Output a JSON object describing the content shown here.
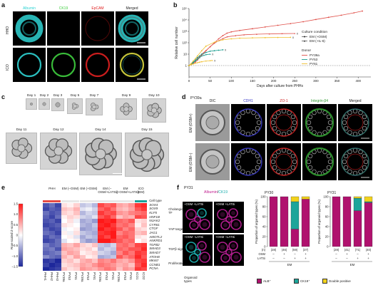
{
  "panel_a": {
    "letter": "a",
    "columns": [
      "Albumin",
      "CK19",
      "EpCAM",
      "Merged"
    ],
    "column_colors": [
      "#2fd3d3",
      "#3fcf3f",
      "#e02020",
      "#ffffff"
    ],
    "rows": [
      "HHO",
      "ICO"
    ]
  },
  "panel_b": {
    "letter": "b",
    "chart_data": {
      "type": "line",
      "xlabel": "Days after culture from PHHs",
      "ylabel": "Relative cell number",
      "xlim": [
        0,
        430
      ],
      "x_ticks": [
        "0",
        "50",
        "100",
        "150",
        "200",
        "250",
        "300",
        "350",
        "400"
      ],
      "y_ticks": [
        "1",
        "10",
        "10²",
        "10³",
        "10⁴",
        "10⁵"
      ],
      "y_scale": "log",
      "legend_condition_title": "Culture condition",
      "legend_condition": [
        "EM (+OSM)",
        "EM (+IL-6)"
      ],
      "legend_donor_title": "Donor",
      "legend_donor": [
        "PY39a",
        "PY53",
        "PY61"
      ],
      "series": [
        {
          "name": "PY39a",
          "color": "#e0504a",
          "condition": "EM (+OSM)",
          "end_marker": "none",
          "x": [
            0,
            5,
            10,
            15,
            20,
            25,
            30,
            35,
            40,
            50,
            60,
            70,
            80,
            90,
            100,
            120,
            150,
            180,
            210,
            240,
            270,
            300,
            330,
            360,
            390,
            410
          ],
          "y": [
            1,
            1.2,
            1.5,
            2,
            3,
            5,
            8,
            12,
            20,
            45,
            100,
            220,
            420,
            700,
            900,
            1200,
            1700,
            2400,
            3400,
            4800,
            7000,
            11000,
            17000,
            26000,
            42000,
            60000
          ]
        },
        {
          "name": "PY39a",
          "color": "#e0504a",
          "condition": "EM (+IL-6)",
          "end_marker": "x",
          "x": [
            0,
            5,
            10,
            15,
            20,
            25,
            30,
            40,
            50,
            60,
            70,
            80,
            90,
            110,
            130,
            160,
            190,
            220,
            250
          ],
          "y": [
            1,
            1.3,
            1.7,
            2.5,
            4,
            6,
            10,
            20,
            45,
            90,
            150,
            230,
            330,
            420,
            500,
            560,
            600,
            630,
            650
          ]
        },
        {
          "name": "PY53",
          "color": "#1a9d8f",
          "condition": "EM (+OSM)",
          "end_marker": "x",
          "x": [
            0,
            5,
            10,
            15,
            20,
            25,
            30,
            40,
            50,
            60,
            70,
            80
          ],
          "y": [
            1,
            1.4,
            2,
            3,
            5,
            7,
            10,
            14,
            18,
            20,
            22,
            24
          ]
        },
        {
          "name": "PY53",
          "color": "#1a9d8f",
          "condition": "EM (+IL-6)",
          "end_marker": "x",
          "x": [
            0,
            5,
            10,
            15,
            20,
            25,
            30,
            35,
            40,
            50
          ],
          "y": [
            1,
            1.3,
            1.8,
            2.5,
            3.5,
            5,
            7,
            8,
            9,
            10
          ]
        },
        {
          "name": "PY61",
          "color": "#f0c030",
          "condition": "EM (+OSM)",
          "end_marker": "x",
          "x": [
            0,
            5,
            10,
            15,
            20,
            30,
            40,
            60,
            80,
            100,
            120,
            150,
            180,
            210,
            240
          ],
          "y": [
            1,
            1.5,
            2.5,
            4,
            7,
            20,
            50,
            110,
            180,
            220,
            250,
            270,
            280,
            290,
            300
          ]
        },
        {
          "name": "PY61",
          "color": "#f0c030",
          "condition": "EM (+IL-6)",
          "end_marker": "x",
          "x": [
            0,
            5,
            10,
            15,
            20,
            25,
            30,
            40,
            50,
            55
          ],
          "y": [
            1,
            1.2,
            1.4,
            1.6,
            1.8,
            2,
            2.2,
            2.5,
            2.7,
            2.8
          ]
        }
      ]
    }
  },
  "panel_c": {
    "letter": "c",
    "days": [
      "Day 1",
      "Day 2",
      "Day 3",
      "Day 5",
      "Day 7",
      "Day 9",
      "Day 10",
      "Day 11",
      "Day 12",
      "Day 14",
      "Day 15"
    ]
  },
  "panel_d": {
    "letter": "d",
    "donor": "PY39a",
    "columns": [
      "DIC",
      "CDH1",
      "ZO-1",
      "Integrin-β4",
      "Merged"
    ],
    "column_colors": [
      "#222222",
      "#3a3ac8",
      "#d02020",
      "#2f9a2f",
      "#222222"
    ],
    "rows": [
      "EM (OSM+)",
      "EM (OSM–)"
    ]
  },
  "panel_e": {
    "letter": "e",
    "groups": [
      "PHH",
      "EM (–OSM)",
      "EM (+OSM)",
      "EM (–OSM/+LATSi)",
      "EM (+OSM/+LATSi)",
      "ICO (EM)"
    ],
    "cell_type_label": "Cell type",
    "gene_groups": [
      {
        "label": "Cholangio-cyte TF",
        "genes": [
          "SOX4",
          "SOX9",
          "KLF5",
          "HNF1B"
        ]
      },
      {
        "label": "YAP targets",
        "genes": [
          "NUAK2",
          "CYR61",
          "CTGF",
          "JAG1",
          "AMOTL2",
          "ANKRD1"
        ]
      },
      {
        "label": "TGFβ signalling",
        "genes": [
          "TGFB2",
          "SMAD3",
          "SMAD7",
          "ATOH8"
        ]
      },
      {
        "label": "Proliferation",
        "genes": [
          "MKI67",
          "CCNB1",
          "PCNA"
        ]
      }
    ],
    "colorbar_label": "Row-scaled Z-score",
    "colorbar_ticks": [
      "1.5",
      "1.0",
      "0.5",
      "0",
      "–0.5",
      "–1.0",
      "–1.5"
    ],
    "samples": [
      "PHH1",
      "PHH2",
      "PHH3",
      "PY39a",
      "PY53",
      "PY61",
      "PY39a",
      "PY53",
      "PY61",
      "PY39a",
      "PY53",
      "PY61",
      "PY39a",
      "PY53",
      "PY61",
      "ICO1",
      "ICO2"
    ],
    "matrix": [
      [
        -1.2,
        -1.0,
        -1.3,
        0.2,
        0.1,
        0.3,
        -0.4,
        -0.3,
        -0.5,
        1.2,
        1.0,
        1.1,
        0.6,
        0.5,
        0.7,
        1.3,
        1.4
      ],
      [
        -1.3,
        -1.1,
        -1.2,
        0.4,
        0.3,
        0.5,
        -0.2,
        -0.1,
        -0.3,
        1.0,
        1.2,
        0.9,
        0.5,
        0.4,
        0.6,
        1.1,
        1.3
      ],
      [
        -1.0,
        -1.2,
        -1.1,
        0.3,
        0.2,
        0.4,
        -0.5,
        -0.3,
        -0.4,
        1.3,
        1.1,
        1.2,
        0.7,
        0.6,
        0.8,
        0.9,
        1.0
      ],
      [
        -1.1,
        -1.3,
        -1.0,
        0.1,
        0.3,
        0.2,
        -0.3,
        -0.4,
        -0.2,
        1.1,
        1.3,
        1.0,
        0.4,
        0.6,
        0.5,
        1.2,
        1.1
      ],
      [
        -1.2,
        -1.1,
        -1.3,
        0.0,
        0.2,
        -0.1,
        -0.6,
        -0.5,
        -0.7,
        1.5,
        1.4,
        1.5,
        1.0,
        0.9,
        1.1,
        0.2,
        0.3
      ],
      [
        -1.3,
        -1.2,
        -1.1,
        0.2,
        0.1,
        0.0,
        -0.5,
        -0.6,
        -0.4,
        1.4,
        1.5,
        1.3,
        0.9,
        1.0,
        0.8,
        0.1,
        0.4
      ],
      [
        -1.1,
        -1.3,
        -1.2,
        -0.1,
        0.0,
        0.1,
        -0.7,
        -0.6,
        -0.5,
        1.5,
        1.3,
        1.4,
        1.1,
        0.8,
        1.0,
        0.3,
        0.2
      ],
      [
        -1.0,
        -1.1,
        -1.3,
        0.1,
        -0.1,
        0.2,
        -0.4,
        -0.5,
        -0.6,
        1.3,
        1.4,
        1.5,
        0.8,
        1.0,
        0.9,
        0.4,
        0.5
      ],
      [
        -1.2,
        -1.0,
        -1.1,
        0.0,
        0.1,
        -0.2,
        -0.6,
        -0.4,
        -0.5,
        1.4,
        1.2,
        1.5,
        1.0,
        1.1,
        0.9,
        0.2,
        0.1
      ],
      [
        -1.3,
        -1.2,
        -1.0,
        -0.2,
        0.0,
        0.1,
        -0.5,
        -0.7,
        -0.6,
        1.5,
        1.5,
        1.3,
        1.1,
        0.9,
        1.0,
        0.0,
        0.2
      ],
      [
        -0.9,
        -1.1,
        -1.0,
        0.5,
        0.4,
        0.6,
        0.3,
        0.2,
        0.4,
        -0.4,
        -0.5,
        -0.3,
        0.9,
        1.0,
        0.8,
        1.2,
        1.3
      ],
      [
        -1.0,
        -0.9,
        -1.2,
        0.6,
        0.5,
        0.4,
        0.2,
        0.3,
        0.1,
        -0.5,
        -0.3,
        -0.4,
        1.0,
        0.9,
        1.1,
        1.1,
        1.4
      ],
      [
        -1.1,
        -1.0,
        -0.9,
        0.4,
        0.6,
        0.5,
        0.1,
        0.2,
        0.3,
        -0.3,
        -0.4,
        -0.6,
        0.8,
        1.1,
        0.9,
        1.3,
        1.2
      ],
      [
        -0.8,
        -1.0,
        -1.1,
        0.5,
        0.3,
        0.6,
        0.4,
        0.1,
        0.2,
        -0.6,
        -0.5,
        -0.4,
        1.1,
        0.8,
        1.0,
        1.4,
        1.1
      ],
      [
        -1.4,
        -1.3,
        -1.5,
        0.3,
        0.4,
        0.2,
        0.5,
        0.6,
        0.4,
        0.8,
        0.7,
        0.9,
        0.6,
        0.5,
        0.7,
        1.2,
        1.3
      ],
      [
        -1.3,
        -1.5,
        -1.4,
        0.2,
        0.3,
        0.4,
        0.6,
        0.5,
        0.7,
        0.9,
        0.8,
        0.7,
        0.5,
        0.6,
        0.4,
        1.1,
        1.4
      ],
      [
        -1.5,
        -1.4,
        -1.3,
        0.4,
        0.2,
        0.3,
        0.7,
        0.6,
        0.5,
        0.7,
        0.9,
        0.8,
        0.4,
        0.7,
        0.6,
        1.3,
        1.2
      ]
    ]
  },
  "panel_f": {
    "letter": "f",
    "donor": "PY31",
    "stain_albumin": "Albumin",
    "stain_ck19": "CK19",
    "conditions": [
      "–OSM +LATSi",
      "+OSM +LATSi",
      "–OSM –LATSi",
      "+OSM –LATSi"
    ],
    "legend_title": "Organoid types",
    "legend": [
      {
        "label": "ALB⁺",
        "color": "#b0116e"
      },
      {
        "label": "CK19⁺",
        "color": "#1da59a"
      },
      {
        "label": "Double positive",
        "color": "#f2d21b"
      }
    ],
    "bar_charts": [
      {
        "title": "PY30",
        "ylabel": "Proportion of organoid types (%)",
        "y_ticks": [
          "0",
          "20",
          "40",
          "60",
          "80",
          "100"
        ],
        "n": [
          "(28)",
          "(46)",
          "(59)",
          "(37)"
        ],
        "n_label": "(n)",
        "osm": [
          "–",
          "+",
          "–",
          "+"
        ],
        "latsi": [
          "–",
          "–",
          "+",
          "+"
        ],
        "row_labels": [
          "OSM",
          "LATSi"
        ],
        "group_label": "EM",
        "alb": [
          100,
          100,
          35,
          95
        ],
        "ck19": [
          0,
          0,
          55,
          0
        ],
        "dp": [
          0,
          0,
          10,
          5
        ]
      },
      {
        "title": "PY31",
        "ylabel": "Proportion of organoid types (%)",
        "y_ticks": [
          "0",
          "20",
          "40",
          "60",
          "80",
          "100"
        ],
        "n": [
          "(28)",
          "(41)",
          "(71)",
          "(40)"
        ],
        "n_label": "(n)",
        "osm": [
          "–",
          "+",
          "–",
          "+"
        ],
        "latsi": [
          "–",
          "–",
          "+",
          "+"
        ],
        "row_labels": [
          "OSM",
          "LATSi"
        ],
        "group_label": "EM",
        "alb": [
          100,
          100,
          72,
          88
        ],
        "ck19": [
          0,
          0,
          25,
          2
        ],
        "dp": [
          0,
          0,
          3,
          10
        ]
      }
    ]
  }
}
